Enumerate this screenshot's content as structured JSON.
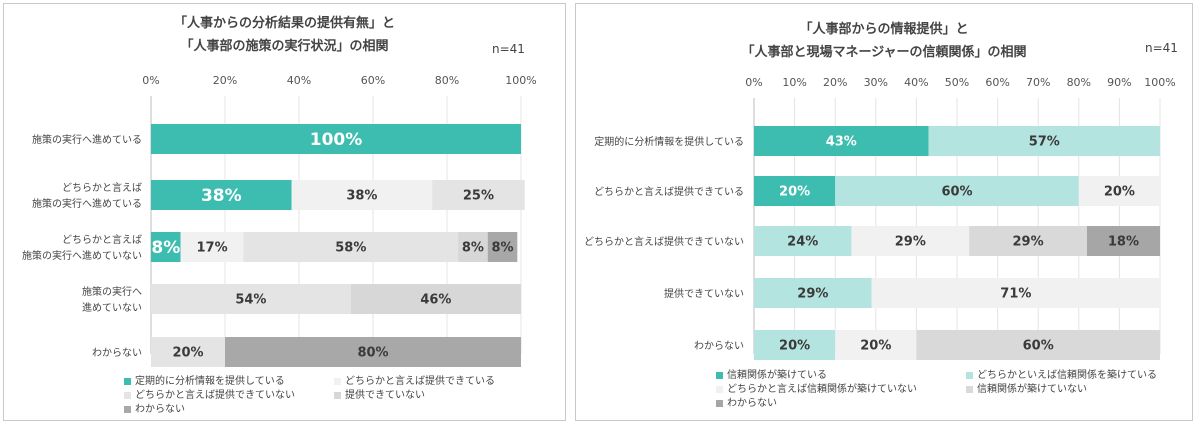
{
  "chart_data": [
    {
      "type": "bar",
      "orientation": "horizontal",
      "stacked": true,
      "title": [
        "「人事からの分析結果の提供有無」と",
        "「人事部の施策の実行状況」の相関"
      ],
      "n_label": "n=41",
      "xlim": [
        0,
        100
      ],
      "x_ticks": [
        "0%",
        "20%",
        "40%",
        "60%",
        "80%",
        "100%"
      ],
      "categories": [
        [
          "施策の実行へ進めている"
        ],
        [
          "どちらかと言えば",
          "施策の実行へ進めている"
        ],
        [
          "どちらかと言えば",
          "施策の実行へ進めていない"
        ],
        [
          "施策の実行へ",
          "進めていない"
        ],
        [
          "わからない"
        ]
      ],
      "series": [
        {
          "name": "定期的に分析情報を提供している",
          "color": "#3dbdb0",
          "values": [
            100,
            38,
            8,
            0,
            0
          ],
          "labels": [
            "100%",
            "38%",
            "8%",
            "",
            ""
          ]
        },
        {
          "name": "どちらかと言えば提供できている",
          "color": "#f1f1f1",
          "values": [
            0,
            38,
            17,
            0,
            0
          ],
          "labels": [
            "",
            "38%",
            "17%",
            "",
            ""
          ]
        },
        {
          "name": "どちらかと言えば提供できていない",
          "color": "#e4e4e4",
          "values": [
            0,
            25,
            58,
            54,
            20
          ],
          "labels": [
            "",
            "25%",
            "58%",
            "54%",
            "20%"
          ]
        },
        {
          "name": "提供できていない",
          "color": "#d7d7d7",
          "values": [
            0,
            0,
            8,
            46,
            0
          ],
          "labels": [
            "",
            "",
            "8%",
            "46%",
            ""
          ]
        },
        {
          "name": "わからない",
          "color": "#a8a8a8",
          "values": [
            0,
            0,
            8,
            0,
            80
          ],
          "labels": [
            "",
            "",
            "8%",
            "",
            "80%"
          ]
        }
      ],
      "legend_position": "bottom"
    },
    {
      "type": "bar",
      "orientation": "horizontal",
      "stacked": true,
      "title": [
        "「人事部からの情報提供」と",
        "「人事部と現場マネージャーの信頼関係」の相関"
      ],
      "n_label": "n=41",
      "xlim": [
        0,
        100
      ],
      "x_ticks": [
        "0%",
        "10%",
        "20%",
        "30%",
        "40%",
        "50%",
        "60%",
        "70%",
        "80%",
        "90%",
        "100%"
      ],
      "categories": [
        [
          "定期的に分析情報を提供している"
        ],
        [
          "どちらかと言えば提供できている"
        ],
        [
          "どちらかと言えば提供できていない"
        ],
        [
          "提供できていない"
        ],
        [
          "わからない"
        ]
      ],
      "series": [
        {
          "name": "信頼関係が築けている",
          "color": "#3dbdb0",
          "values": [
            43,
            20,
            0,
            0,
            0
          ],
          "labels": [
            "43%",
            "20%",
            "",
            "",
            ""
          ]
        },
        {
          "name": "どちらかといえば信頼関係を築けている",
          "color": "#b4e4df",
          "values": [
            57,
            60,
            24,
            29,
            20
          ],
          "labels": [
            "57%",
            "60%",
            "24%",
            "29%",
            "20%"
          ]
        },
        {
          "name": "どちらかと言えば信頼関係が築けていない",
          "color": "#f1f1f1",
          "values": [
            0,
            20,
            29,
            71,
            20
          ],
          "labels": [
            "",
            "20%",
            "29%",
            "71%",
            "20%"
          ]
        },
        {
          "name": "信頼関係が築けていない",
          "color": "#d9d9d9",
          "values": [
            0,
            0,
            29,
            0,
            60
          ],
          "labels": [
            "",
            "",
            "29%",
            "",
            "60%"
          ]
        },
        {
          "name": "わからない",
          "color": "#a6a6a6",
          "values": [
            0,
            0,
            18,
            0,
            0
          ],
          "labels": [
            "",
            "",
            "18%",
            "",
            ""
          ]
        }
      ],
      "legend_position": "bottom"
    }
  ]
}
